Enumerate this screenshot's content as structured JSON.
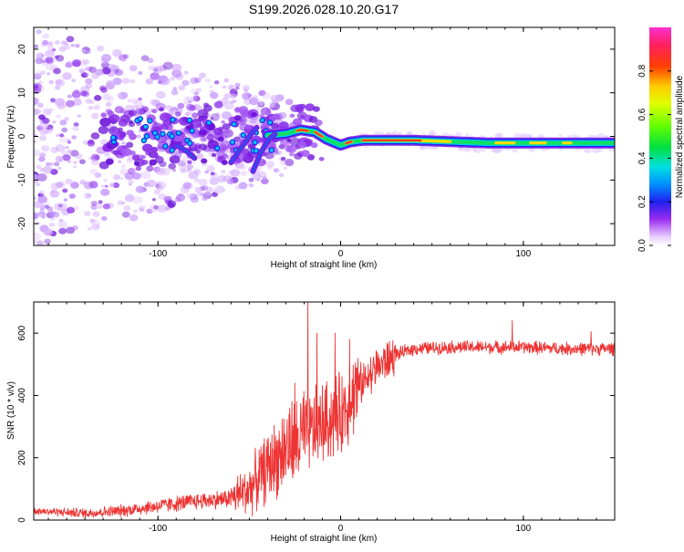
{
  "title": "S199.2026.028.10.20.G17",
  "chart_data": [
    {
      "type": "heatmap",
      "xlabel": "Height of straight line (km)",
      "ylabel": "Frequency (Hz)",
      "xlim": [
        -168,
        150
      ],
      "ylim": [
        -25,
        25
      ],
      "x_ticks": [
        -100,
        0,
        100
      ],
      "y_ticks": [
        -20,
        -10,
        0,
        10,
        20
      ],
      "colorbar": {
        "label": "Normalized spectral amplitude",
        "range": [
          0,
          1
        ],
        "ticks": [
          0,
          0.2,
          0.4,
          0.6,
          0.8
        ],
        "tick_labels": [
          "0.0",
          "0.2",
          "0.4",
          "0.6",
          "0.8"
        ]
      },
      "ridge": [
        {
          "x": -40,
          "y": 0.2
        },
        {
          "x": -30,
          "y": 0.6
        },
        {
          "x": -22,
          "y": 1.5
        },
        {
          "x": -14,
          "y": 1.0
        },
        {
          "x": -8,
          "y": -0.6
        },
        {
          "x": 0,
          "y": -2.0
        },
        {
          "x": 5,
          "y": -1.3
        },
        {
          "x": 12,
          "y": -0.9
        },
        {
          "x": 40,
          "y": -0.9
        },
        {
          "x": 80,
          "y": -1.5
        },
        {
          "x": 150,
          "y": -1.5
        }
      ]
    },
    {
      "type": "line",
      "xlabel": "Height of straight line (km)",
      "ylabel": "SNR (10 * v/v)",
      "xlim": [
        -168,
        150
      ],
      "ylim": [
        0,
        700
      ],
      "x_ticks": [
        -100,
        0,
        100
      ],
      "y_ticks": [
        0,
        200,
        400,
        600
      ],
      "series": [
        {
          "name": "SNR",
          "color": "#ee3333",
          "trend": [
            {
              "x": -168,
              "y": 30
            },
            {
              "x": -140,
              "y": 22
            },
            {
              "x": -120,
              "y": 30
            },
            {
              "x": -100,
              "y": 45
            },
            {
              "x": -80,
              "y": 60
            },
            {
              "x": -60,
              "y": 70
            },
            {
              "x": -50,
              "y": 100
            },
            {
              "x": -40,
              "y": 170
            },
            {
              "x": -30,
              "y": 230
            },
            {
              "x": -20,
              "y": 270
            },
            {
              "x": -10,
              "y": 310
            },
            {
              "x": 0,
              "y": 340
            },
            {
              "x": 10,
              "y": 430
            },
            {
              "x": 20,
              "y": 490
            },
            {
              "x": 30,
              "y": 530
            },
            {
              "x": 40,
              "y": 550
            },
            {
              "x": 60,
              "y": 555
            },
            {
              "x": 80,
              "y": 555
            },
            {
              "x": 100,
              "y": 555
            },
            {
              "x": 125,
              "y": 550
            },
            {
              "x": 150,
              "y": 550
            }
          ],
          "spikes": [
            {
              "x": -18,
              "y": 700
            },
            {
              "x": -13,
              "y": 600
            },
            {
              "x": -25,
              "y": 440
            },
            {
              "x": -3,
              "y": 600
            },
            {
              "x": 5,
              "y": 580
            },
            {
              "x": 94,
              "y": 640
            },
            {
              "x": 8,
              "y": 505
            },
            {
              "x": -1,
              "y": 410
            },
            {
              "x": 15,
              "y": 500
            },
            {
              "x": 137,
              "y": 605
            }
          ]
        }
      ]
    }
  ]
}
